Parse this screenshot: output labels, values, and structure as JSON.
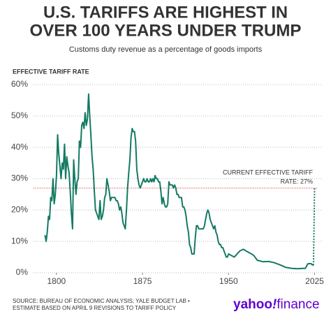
{
  "chart_data": {
    "type": "line",
    "title": [
      "U.S. TARIFFS ARE HIGHEST IN",
      "OVER 100 YEARS UNDER TRUMP"
    ],
    "subtitle": "Customs duty revenue as a percentage of goods imports",
    "y_label": "EFFECTIVE TARIFF RATE",
    "color": "#137a63",
    "x": [
      1790,
      1791,
      1792,
      1793,
      1794,
      1795,
      1796,
      1797,
      1798,
      1799,
      1800,
      1801,
      1802,
      1803,
      1804,
      1805,
      1806,
      1807,
      1808,
      1809,
      1810,
      1811,
      1812,
      1813,
      1814,
      1815,
      1816,
      1817,
      1818,
      1819,
      1820,
      1821,
      1822,
      1823,
      1824,
      1825,
      1826,
      1827,
      1828,
      1829,
      1830,
      1831,
      1832,
      1833,
      1834,
      1835,
      1836,
      1837,
      1838,
      1839,
      1840,
      1841,
      1842,
      1843,
      1844,
      1845,
      1846,
      1847,
      1848,
      1849,
      1850,
      1851,
      1852,
      1853,
      1854,
      1855,
      1856,
      1857,
      1858,
      1859,
      1860,
      1861,
      1862,
      1863,
      1864,
      1865,
      1866,
      1867,
      1868,
      1869,
      1870,
      1871,
      1872,
      1873,
      1874,
      1875,
      1876,
      1877,
      1878,
      1879,
      1880,
      1881,
      1882,
      1883,
      1884,
      1885,
      1886,
      1887,
      1888,
      1889,
      1890,
      1891,
      1892,
      1893,
      1894,
      1895,
      1896,
      1897,
      1898,
      1899,
      1900,
      1901,
      1902,
      1903,
      1904,
      1905,
      1906,
      1907,
      1908,
      1909,
      1910,
      1911,
      1912,
      1913,
      1914,
      1915,
      1916,
      1917,
      1918,
      1919,
      1920,
      1921,
      1922,
      1923,
      1924,
      1925,
      1926,
      1927,
      1928,
      1929,
      1930,
      1931,
      1932,
      1933,
      1934,
      1935,
      1936,
      1937,
      1938,
      1939,
      1940,
      1941,
      1942,
      1943,
      1944,
      1945,
      1946,
      1947,
      1948,
      1949,
      1950,
      1955,
      1960,
      1963,
      1965,
      1970,
      1972,
      1975,
      1980,
      1985,
      1990,
      1995,
      2000,
      2005,
      2010,
      2015,
      2017,
      2019,
      2020,
      2022,
      2023,
      2024
    ],
    "values": [
      12,
      10,
      13,
      18,
      17,
      24,
      23,
      30,
      22,
      25,
      31,
      44,
      38,
      34,
      30,
      35,
      33,
      41,
      30,
      37,
      34,
      32,
      26,
      19,
      14,
      36,
      30,
      25,
      29,
      30,
      42,
      40,
      47,
      48,
      46,
      51,
      47,
      49,
      57,
      50,
      44,
      37,
      33,
      26,
      20,
      19,
      18,
      17,
      23,
      17,
      18,
      20,
      24,
      25,
      30,
      28,
      26,
      23,
      24,
      24,
      24,
      24,
      23,
      23,
      22,
      20,
      21,
      19,
      16,
      15,
      14,
      20,
      27,
      32,
      36,
      43,
      46,
      45,
      45,
      42,
      33,
      30,
      28,
      27,
      28,
      29,
      30,
      29,
      29,
      30,
      29,
      29,
      30,
      29,
      30,
      29,
      31,
      30,
      30,
      29,
      29,
      26,
      22,
      24,
      22,
      21,
      21,
      22,
      29,
      28,
      28,
      28,
      27,
      28,
      27,
      25,
      25,
      24,
      24,
      24,
      21,
      21,
      20,
      18,
      15,
      13,
      9,
      8,
      6,
      6,
      6,
      11,
      15,
      15,
      14,
      14,
      14,
      14,
      14,
      15,
      17,
      19,
      20,
      19,
      17,
      16,
      15,
      14,
      15,
      13,
      12,
      10,
      9,
      9,
      8,
      8,
      7,
      6,
      5,
      5,
      6,
      5,
      7,
      7.5,
      7,
      6,
      5.5,
      4,
      3.5,
      3.6,
      3.2,
      2.5,
      1.7,
      1.4,
      1.3,
      1.4,
      1.4,
      2.8,
      2.9,
      2.9,
      2.5,
      2.4
    ],
    "estimate": {
      "x": [
        2024,
        2025
      ],
      "values": [
        2.4,
        27
      ]
    },
    "reference_line": {
      "value": 27,
      "color": "#d62728"
    },
    "annotation": [
      "CURRENT EFFECTIVE TARIFF",
      "RATE: 27%"
    ],
    "xlim": [
      1780,
      2032
    ],
    "xticks": [
      1800,
      1875,
      1950,
      2025
    ],
    "ylim": [
      0,
      60
    ],
    "yticks": [
      {
        "value": 0,
        "label": "0%"
      },
      {
        "value": 10,
        "label": "10%"
      },
      {
        "value": 20,
        "label": "20%"
      },
      {
        "value": 30,
        "label": "30%"
      },
      {
        "value": 40,
        "label": "40%"
      },
      {
        "value": 50,
        "label": "50%"
      },
      {
        "value": 60,
        "label": "60%"
      }
    ],
    "grid": true,
    "source": [
      "SOURCE: BUREAU OF ECONOMIC ANALYSIS; YALE BUDGET LAB •",
      "ESTIMATE BASED ON APRIL 9 REVISIONS TO TARIFF POLICY"
    ],
    "logo": [
      "yahoo",
      "!",
      "finance"
    ]
  }
}
